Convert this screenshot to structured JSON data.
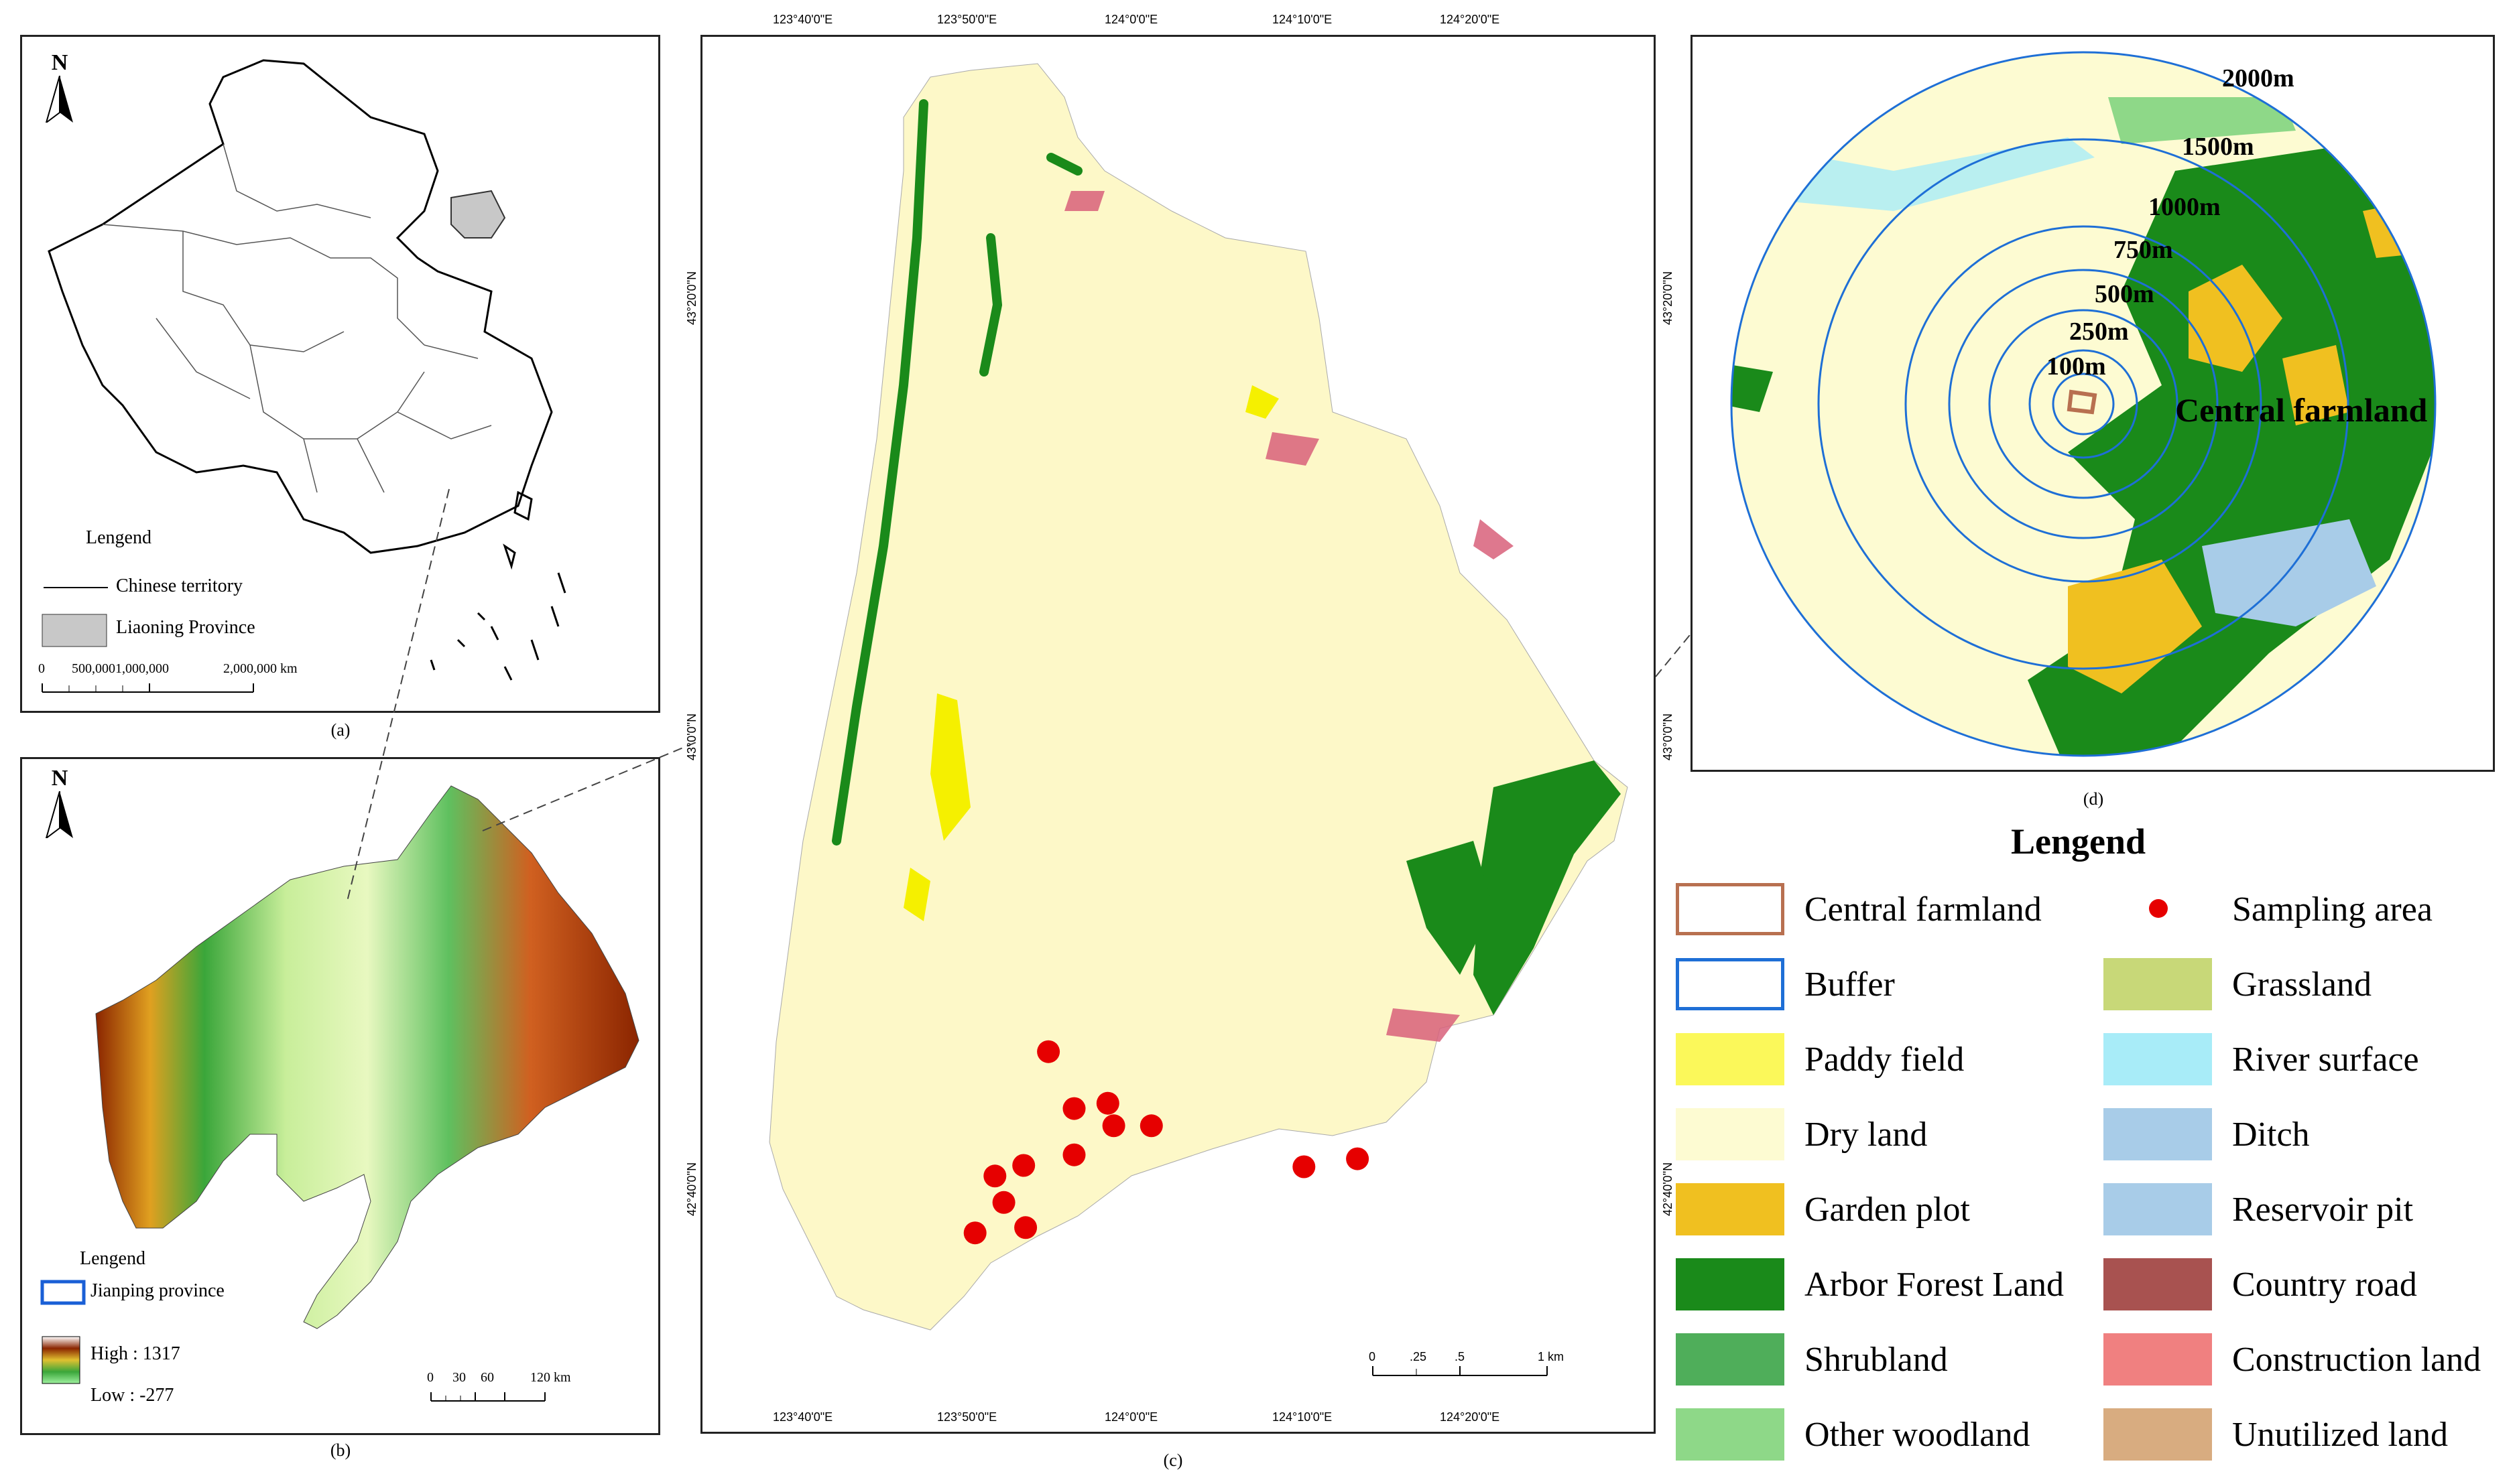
{
  "panels": {
    "a": {
      "caption": "(a)",
      "north": "N",
      "legend_title": "Lengend",
      "legend_items": [
        "Chinese territory",
        "Liaoning Province"
      ],
      "scale_labels": [
        "0",
        "500,0001,000,000",
        "2,000,000 km"
      ],
      "colors": {
        "province": "#c8c8c8",
        "territory": "#000000"
      }
    },
    "b": {
      "caption": "(b)",
      "north": "N",
      "legend_title": "Lengend",
      "legend_item": "Jianping province",
      "high_label": "High : 1317",
      "low_label": "Low : -277",
      "scale_labels": [
        "0",
        "30",
        "60",
        "120 km"
      ],
      "colors": {
        "low": "#7fe07f",
        "mid": "#3aa63a",
        "yellow": "#e0d040",
        "high": "#8b2500",
        "buffer": "#1a5fd6"
      }
    },
    "c": {
      "caption": "(c)",
      "top_coords": [
        "123°40'0\"E",
        "123°50'0\"E",
        "124°0'0\"E",
        "124°10'0\"E",
        "124°20'0\"E"
      ],
      "bottom_coords": [
        "123°40'0\"E",
        "123°50'0\"E",
        "124°0'0\"E",
        "124°10'0\"E",
        "124°20'0\"E"
      ],
      "left_coords": [
        "43°20'0\"N",
        "43°0'0\"N",
        "42°40'0\"N"
      ],
      "right_coords": [
        "43°20'0\"N",
        "43°0'0\"N",
        "42°40'0\"N"
      ],
      "scale_labels": [
        "0",
        ".25",
        ".5",
        "1 km"
      ],
      "sampling_points": [
        {
          "lon": 123.884,
          "lat": 42.745
        },
        {
          "lon": 123.91,
          "lat": 42.702
        },
        {
          "lon": 123.944,
          "lat": 42.706
        },
        {
          "lon": 123.95,
          "lat": 42.689
        },
        {
          "lon": 123.988,
          "lat": 42.689
        },
        {
          "lon": 123.91,
          "lat": 42.667
        },
        {
          "lon": 123.859,
          "lat": 42.659
        },
        {
          "lon": 123.83,
          "lat": 42.651
        },
        {
          "lon": 123.839,
          "lat": 42.631
        },
        {
          "lon": 123.861,
          "lat": 42.612
        },
        {
          "lon": 123.81,
          "lat": 42.608
        },
        {
          "lon": 124.142,
          "lat": 42.658
        },
        {
          "lon": 124.196,
          "lat": 42.664
        }
      ],
      "colors": {
        "dry": "#fdf8c8",
        "paddy": "#f5f000",
        "forest": "#1a8a1a",
        "construction": "#d8607a",
        "sample": "#e60000"
      }
    },
    "d": {
      "caption": "(d)",
      "rings": [
        "2000m",
        "1500m",
        "1000m",
        "750m",
        "500m",
        "250m",
        "100m"
      ],
      "center_label": "Central farmland",
      "colors": {
        "ring": "#1e6fd6"
      }
    }
  },
  "legend": {
    "title": "Lengend",
    "left": [
      {
        "label": "Central farmland",
        "color": "#ffffff",
        "border": "#b87050",
        "icon": "central-farmland-swatch"
      },
      {
        "label": "Buffer",
        "color": "#ffffff",
        "border": "#1e6fd6",
        "icon": "buffer-swatch"
      },
      {
        "label": "Paddy field",
        "color": "#fbf85a",
        "border": "none",
        "icon": "paddy-swatch"
      },
      {
        "label": "Dry land",
        "color": "#fdfbd2",
        "border": "none",
        "icon": "dry-land-swatch"
      },
      {
        "label": "Garden plot",
        "color": "#f0c020",
        "border": "none",
        "icon": "garden-swatch"
      },
      {
        "label": "Arbor Forest Land",
        "color": "#1a8a1a",
        "border": "none",
        "icon": "arbor-swatch"
      },
      {
        "label": "Shrubland",
        "color": "#4fae5a",
        "border": "none",
        "icon": "shrub-swatch"
      },
      {
        "label": "Other woodland",
        "color": "#8ed888",
        "border": "none",
        "icon": "woodland-swatch"
      }
    ],
    "right": [
      {
        "label": "Sampling area",
        "color": "#e60000",
        "border": "none",
        "icon": "sampling-dot"
      },
      {
        "label": "Grassland",
        "color": "#c8d878",
        "border": "none",
        "icon": "grass-swatch"
      },
      {
        "label": "River surface",
        "color": "#a8ecf8",
        "border": "none",
        "icon": "river-swatch"
      },
      {
        "label": "Ditch",
        "color": "#a8cce8",
        "border": "none",
        "icon": "ditch-swatch"
      },
      {
        "label": "Reservoir pit",
        "color": "#a8cce8",
        "border": "none",
        "icon": "reservoir-swatch"
      },
      {
        "label": "Country road",
        "color": "#a85250",
        "border": "none",
        "icon": "road-swatch"
      },
      {
        "label": "Construction land",
        "color": "#f08080",
        "border": "none",
        "icon": "construction-swatch"
      },
      {
        "label": "Unutilized land",
        "color": "#d8ac80",
        "border": "none",
        "icon": "unutilized-swatch"
      }
    ]
  }
}
